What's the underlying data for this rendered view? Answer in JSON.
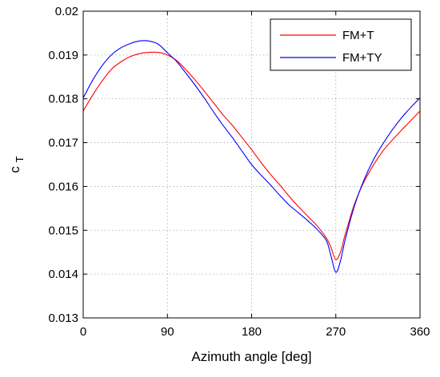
{
  "chart_data": {
    "type": "line",
    "title": "",
    "xlabel": "Azimuth angle [deg]",
    "ylabel_main": "c",
    "ylabel_sub": "T",
    "xlim": [
      0,
      360
    ],
    "ylim": [
      0.013,
      0.02
    ],
    "xticks": [
      0,
      90,
      180,
      270,
      360
    ],
    "yticks": [
      0.013,
      0.014,
      0.015,
      0.016,
      0.017,
      0.018,
      0.019,
      0.02
    ],
    "xtick_labels": [
      "0",
      "90",
      "180",
      "270",
      "360"
    ],
    "ytick_labels": [
      "0.013",
      "0.014",
      "0.015",
      "0.016",
      "0.017",
      "0.018",
      "0.019",
      "0.02"
    ],
    "grid": true,
    "legend_position": "top-right",
    "series": [
      {
        "name": "FM+T",
        "color": "#ff0000",
        "x": [
          0,
          10,
          20,
          30,
          40,
          50,
          60,
          70,
          80,
          90,
          100,
          110,
          120,
          130,
          140,
          150,
          160,
          170,
          180,
          190,
          200,
          210,
          220,
          230,
          240,
          250,
          260,
          265,
          270,
          275,
          280,
          290,
          300,
          310,
          320,
          330,
          340,
          350,
          360
        ],
        "y": [
          0.01772,
          0.01808,
          0.0184,
          0.01867,
          0.01884,
          0.01896,
          0.01903,
          0.01906,
          0.01906,
          0.019,
          0.01887,
          0.01866,
          0.01842,
          0.01816,
          0.01789,
          0.01762,
          0.01738,
          0.01711,
          0.01684,
          0.01655,
          0.01628,
          0.01604,
          0.01578,
          0.01554,
          0.01532,
          0.0151,
          0.01482,
          0.0146,
          0.01433,
          0.0145,
          0.0149,
          0.0156,
          0.0161,
          0.01648,
          0.0168,
          0.01705,
          0.01728,
          0.0175,
          0.01772
        ]
      },
      {
        "name": "FM+TY",
        "color": "#0000ff",
        "x": [
          0,
          10,
          20,
          30,
          40,
          50,
          60,
          70,
          80,
          90,
          100,
          110,
          120,
          130,
          140,
          150,
          160,
          170,
          180,
          190,
          200,
          210,
          220,
          230,
          240,
          250,
          260,
          265,
          270,
          275,
          280,
          290,
          300,
          310,
          320,
          330,
          340,
          350,
          360
        ],
        "y": [
          0.01802,
          0.01842,
          0.01875,
          0.019,
          0.01916,
          0.01926,
          0.01932,
          0.01932,
          0.01925,
          0.01905,
          0.01885,
          0.01858,
          0.0183,
          0.018,
          0.01768,
          0.01738,
          0.0171,
          0.0168,
          0.0165,
          0.01626,
          0.01604,
          0.0158,
          0.01558,
          0.0154,
          0.01522,
          0.01502,
          0.01476,
          0.0144,
          0.01404,
          0.0143,
          0.01478,
          0.01556,
          0.01614,
          0.0166,
          0.01696,
          0.01728,
          0.01756,
          0.0178,
          0.01802
        ]
      }
    ]
  }
}
